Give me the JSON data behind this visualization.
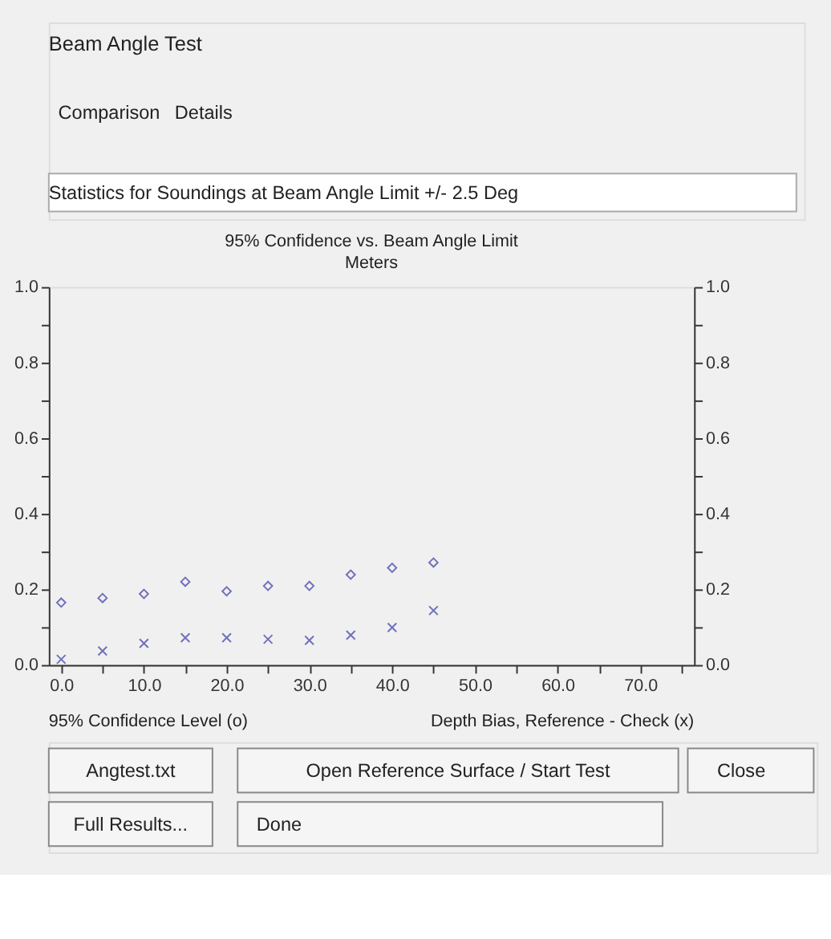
{
  "chart_data": {
    "type": "scatter",
    "title": "95% Confidence vs. Beam Angle Limit",
    "subtitle": "Meters",
    "x": [
      0,
      5,
      10,
      15,
      20,
      25,
      30,
      35,
      40,
      45
    ],
    "series": [
      {
        "marker": "diamond",
        "color": "#3a3aaa",
        "values": [
          0.165,
          0.177,
          0.188,
          0.22,
          0.195,
          0.209,
          0.209,
          0.239,
          0.257,
          0.271
        ]
      },
      {
        "marker": "cross",
        "color": "#3a3aaa",
        "values": [
          0.015,
          0.037,
          0.057,
          0.072,
          0.072,
          0.068,
          0.065,
          0.079,
          0.099,
          0.144
        ]
      }
    ],
    "xlim": [
      -1.5,
      76.5
    ],
    "xticks": [
      {
        "value": 0,
        "label": "0.0"
      },
      {
        "value": 5,
        "label": null
      },
      {
        "value": 10,
        "label": "10.0"
      },
      {
        "value": 15,
        "label": null
      },
      {
        "value": 20,
        "label": "20.0"
      },
      {
        "value": 25,
        "label": null
      },
      {
        "value": 30,
        "label": "30.0"
      },
      {
        "value": 35,
        "label": null
      },
      {
        "value": 40,
        "label": "40.0"
      },
      {
        "value": 45,
        "label": null
      },
      {
        "value": 50,
        "label": "50.0"
      },
      {
        "value": 55,
        "label": null
      },
      {
        "value": 60,
        "label": "60.0"
      },
      {
        "value": 65,
        "label": null
      },
      {
        "value": 70,
        "label": "70.0"
      },
      {
        "value": 75,
        "label": null
      }
    ],
    "ylim": [
      0,
      1
    ],
    "yticks": [
      {
        "value": 0,
        "label": "0.0"
      },
      {
        "value": 0.1,
        "label": null
      },
      {
        "value": 0.2,
        "label": "0.2"
      },
      {
        "value": 0.3,
        "label": null
      },
      {
        "value": 0.4,
        "label": "0.4"
      },
      {
        "value": 0.5,
        "label": null
      },
      {
        "value": 0.6,
        "label": "0.6"
      },
      {
        "value": 0.7,
        "label": null
      },
      {
        "value": 0.8,
        "label": "0.8"
      },
      {
        "value": 0.9,
        "label": null
      },
      {
        "value": 1,
        "label": "1.0"
      }
    ],
    "y2lim": [
      0,
      1
    ],
    "y2ticks": [
      {
        "value": 0,
        "label": "0.0"
      },
      {
        "value": 0.1,
        "label": null
      },
      {
        "value": 0.2,
        "label": "0.2"
      },
      {
        "value": 0.3,
        "label": null
      },
      {
        "value": 0.4,
        "label": "0.4"
      },
      {
        "value": 0.5,
        "label": null
      },
      {
        "value": 0.6,
        "label": "0.6"
      },
      {
        "value": 0.7,
        "label": null
      },
      {
        "value": 0.8,
        "label": "0.8"
      },
      {
        "value": 0.9,
        "label": null
      },
      {
        "value": 1,
        "label": "1.0"
      }
    ],
    "grid": false,
    "annotations": [
      "95% Confidence Level (o)",
      "Depth Bias, Reference - Check (x)",
      "Beam Angle Test",
      "Comparison",
      "Details",
      "Statistics for Soundings at Beam Angle Limit +/- 2.5 Deg",
      "Angtest.txt",
      "Open Reference Surface / Start Test",
      "Close",
      "Full Results...",
      "Done"
    ]
  }
}
